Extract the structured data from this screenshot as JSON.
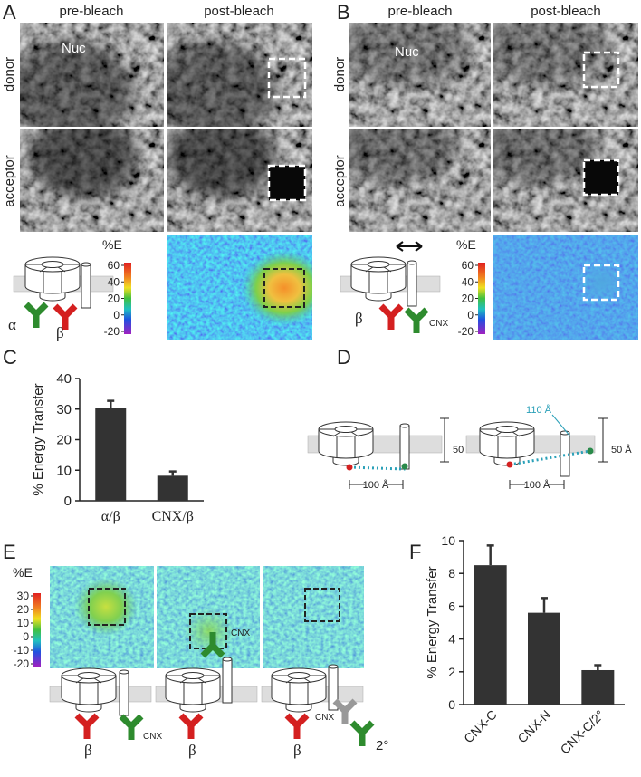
{
  "panel_a": {
    "letter": "A",
    "columns": [
      "pre-bleach",
      "post-bleach"
    ],
    "rows": [
      "donor",
      "acceptor"
    ],
    "nucleus": "Nuc",
    "colorbar": {
      "title": "%E",
      "clim": [
        -20,
        60
      ],
      "ticks": [
        60,
        40,
        20,
        0,
        -20
      ]
    },
    "subunits": [
      "α",
      "β"
    ]
  },
  "panel_b": {
    "letter": "B",
    "columns": [
      "pre-bleach",
      "post-bleach"
    ],
    "rows": [
      "donor",
      "acceptor"
    ],
    "nucleus": "Nuc",
    "colorbar": {
      "title": "%E",
      "clim": [
        -20,
        60
      ],
      "ticks": [
        60,
        40,
        20,
        0,
        -20
      ]
    },
    "subunits": [
      "β",
      "CNX"
    ]
  },
  "panel_d": {
    "letter": "D",
    "distances": [
      "50 Å",
      "100 Å",
      "110 Å",
      "50 Å",
      "100 Å"
    ]
  },
  "panel_e": {
    "letter": "E",
    "colorbar": {
      "title": "%E",
      "clim": [
        -20,
        30
      ],
      "ticks": [
        30,
        20,
        10,
        0,
        -10,
        -20
      ]
    },
    "diagrams": [
      {
        "subunits": [
          "β",
          "CNX"
        ]
      },
      {
        "subunits": [
          "CNX",
          "β"
        ]
      },
      {
        "subunits": [
          "β",
          "CNX",
          "2°"
        ]
      }
    ]
  },
  "chart_data": [
    {
      "type": "bar",
      "panel": "C",
      "ylabel": "% Energy Transfer",
      "categories": [
        "α/β",
        "CNX/β"
      ],
      "values": [
        30.5,
        8.2
      ],
      "errors": [
        2.2,
        1.4
      ],
      "ylim": [
        0,
        40
      ],
      "yticks": [
        0,
        10,
        20,
        30,
        40
      ],
      "color": "#333333"
    },
    {
      "type": "bar",
      "panel": "F",
      "ylabel": "% Energy Transfer",
      "categories": [
        "CNX-C",
        "CNX-N",
        "CNX-C/2°"
      ],
      "values": [
        8.5,
        5.6,
        2.1
      ],
      "errors": [
        1.2,
        0.9,
        0.3
      ],
      "ylim": [
        0,
        10
      ],
      "yticks": [
        0,
        2,
        4,
        6,
        8,
        10
      ],
      "color": "#333333"
    }
  ]
}
